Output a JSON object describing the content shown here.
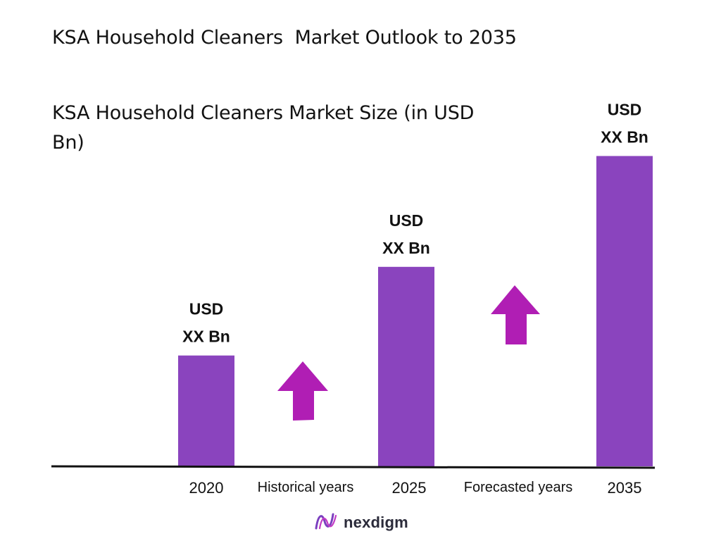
{
  "title": "KSA Household Cleaners  Market Outlook to 2035",
  "subtitle": "KSA Household Cleaners Market Size (in USD Bn)",
  "colors": {
    "bar": "#8A44BE",
    "arrow": "#B01EB4",
    "axis": "#111111"
  },
  "chart_data": {
    "type": "bar",
    "categories": [
      "2020",
      "2025",
      "2035"
    ],
    "values": [
      1,
      1.8,
      2.8
    ],
    "bar_labels": [
      [
        "USD",
        "XX Bn"
      ],
      [
        "USD",
        "XX Bn"
      ],
      [
        "USD",
        "XX Bn"
      ]
    ],
    "annotations": [
      "Historical years",
      "Forecasted years"
    ],
    "ylim": [
      0,
      3
    ],
    "grid": false,
    "legend": "none"
  },
  "brand": {
    "name": "nexdigm",
    "icon": "nexdigm-logo-icon"
  }
}
